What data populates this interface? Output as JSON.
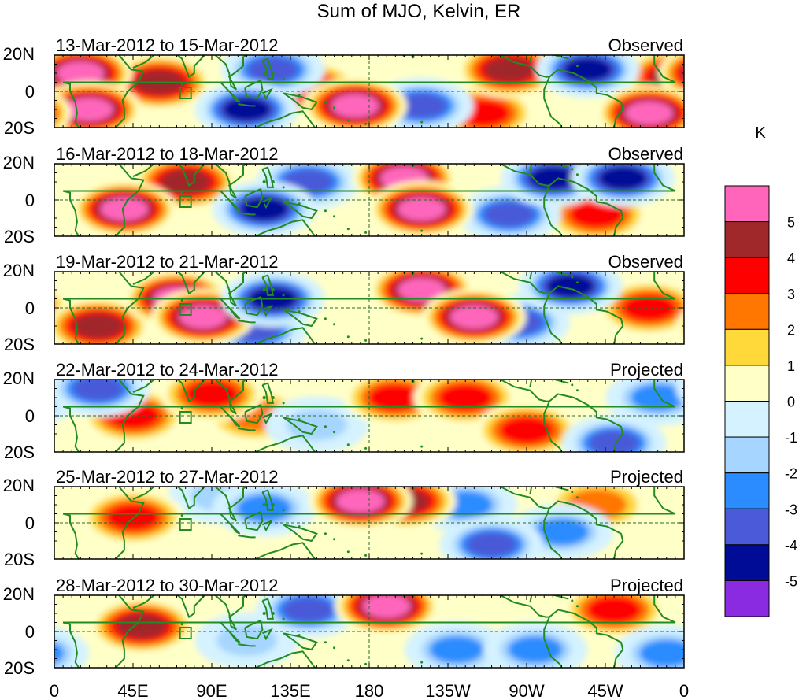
{
  "title": "Sum of MJO, Kelvin, ER",
  "units": "K",
  "lat_labels": [
    "20N",
    "0",
    "20S"
  ],
  "lon_labels": [
    "0",
    "45E",
    "90E",
    "135E",
    "180",
    "135W",
    "90W",
    "45W",
    "0"
  ],
  "panels": [
    {
      "date_range": "13-Mar-2012 to 15-Mar-2012",
      "status": "Observed"
    },
    {
      "date_range": "16-Mar-2012 to 18-Mar-2012",
      "status": "Observed"
    },
    {
      "date_range": "19-Mar-2012 to 21-Mar-2012",
      "status": "Observed"
    },
    {
      "date_range": "22-Mar-2012 to 24-Mar-2012",
      "status": "Projected"
    },
    {
      "date_range": "25-Mar-2012 to 27-Mar-2012",
      "status": "Projected"
    },
    {
      "date_range": "28-Mar-2012 to 30-Mar-2012",
      "status": "Projected"
    }
  ],
  "colorbar": {
    "labels": [
      "5",
      "4",
      "3",
      "2",
      "1",
      "0",
      "-1",
      "-2",
      "-3",
      "-4",
      "-5"
    ],
    "colors": [
      "#ff66bb",
      "#a0282a",
      "#ff0000",
      "#ff7700",
      "#ffd83a",
      "#ffffc8",
      "#d4f2ff",
      "#a6d5ff",
      "#2a8cff",
      "#4a5ad8",
      "#000c96",
      "#8a2be2"
    ]
  },
  "colors": {
    "coast": "#228b22",
    "frame": "#000000"
  },
  "chart_data": [
    {
      "type": "heatmap",
      "title": "Sum of MJO, Kelvin, ER",
      "units": "K",
      "panels": [
        {
          "label": "13-Mar-2012 to 15-Mar-2012",
          "kind": "Observed",
          "anomalies": [
            {
              "lon": 15,
              "lat": 10,
              "value": 5
            },
            {
              "lon": 20,
              "lat": -10,
              "value": 5
            },
            {
              "lon": 60,
              "lat": 5,
              "value": 4
            },
            {
              "lon": 110,
              "lat": -10,
              "value": -5
            },
            {
              "lon": 125,
              "lat": 12,
              "value": -4
            },
            {
              "lon": 172,
              "lat": -8,
              "value": 5
            },
            {
              "lon": 145,
              "lat": 2,
              "value": 3
            },
            {
              "lon": -150,
              "lat": -8,
              "value": -4
            },
            {
              "lon": -115,
              "lat": -12,
              "value": 3
            },
            {
              "lon": -100,
              "lat": 12,
              "value": 4
            },
            {
              "lon": -55,
              "lat": 12,
              "value": -5
            },
            {
              "lon": -20,
              "lat": -12,
              "value": 5
            },
            {
              "lon": -5,
              "lat": 8,
              "value": 4
            }
          ]
        },
        {
          "label": "16-Mar-2012 to 18-Mar-2012",
          "kind": "Observed",
          "anomalies": [
            {
              "lon": 40,
              "lat": -5,
              "value": 5
            },
            {
              "lon": 75,
              "lat": 10,
              "value": 4
            },
            {
              "lon": 120,
              "lat": -5,
              "value": -5
            },
            {
              "lon": 145,
              "lat": 10,
              "value": -4
            },
            {
              "lon": -160,
              "lat": 12,
              "value": 5
            },
            {
              "lon": -150,
              "lat": -5,
              "value": 5
            },
            {
              "lon": -100,
              "lat": -8,
              "value": -4
            },
            {
              "lon": -75,
              "lat": 12,
              "value": -5
            },
            {
              "lon": -35,
              "lat": 12,
              "value": -5
            },
            {
              "lon": -50,
              "lat": -8,
              "value": 3
            }
          ]
        },
        {
          "label": "19-Mar-2012 to 21-Mar-2012",
          "kind": "Observed",
          "anomalies": [
            {
              "lon": 70,
              "lat": 5,
              "value": 5
            },
            {
              "lon": 85,
              "lat": -5,
              "value": 5
            },
            {
              "lon": 25,
              "lat": -10,
              "value": 4
            },
            {
              "lon": 125,
              "lat": 5,
              "value": -5
            },
            {
              "lon": 115,
              "lat": -12,
              "value": -4
            },
            {
              "lon": -150,
              "lat": 10,
              "value": 5
            },
            {
              "lon": -120,
              "lat": -5,
              "value": 5
            },
            {
              "lon": -95,
              "lat": -8,
              "value": -4
            },
            {
              "lon": -65,
              "lat": 12,
              "value": -5
            },
            {
              "lon": -20,
              "lat": 0,
              "value": 3
            }
          ]
        },
        {
          "label": "22-Mar-2012 to 24-Mar-2012",
          "kind": "Projected",
          "anomalies": [
            {
              "lon": 25,
              "lat": 15,
              "value": -4
            },
            {
              "lon": 45,
              "lat": 0,
              "value": 3
            },
            {
              "lon": 90,
              "lat": 12,
              "value": 3
            },
            {
              "lon": 115,
              "lat": 0,
              "value": 2
            },
            {
              "lon": 150,
              "lat": -5,
              "value": -2
            },
            {
              "lon": -165,
              "lat": 10,
              "value": 3
            },
            {
              "lon": -125,
              "lat": 10,
              "value": 3
            },
            {
              "lon": -90,
              "lat": -8,
              "value": 3
            },
            {
              "lon": -40,
              "lat": -15,
              "value": -4
            },
            {
              "lon": -15,
              "lat": 10,
              "value": -3
            }
          ]
        },
        {
          "label": "25-Mar-2012 to 27-Mar-2012",
          "kind": "Projected",
          "anomalies": [
            {
              "lon": 45,
              "lat": 3,
              "value": 3
            },
            {
              "lon": 95,
              "lat": 15,
              "value": -2
            },
            {
              "lon": 120,
              "lat": 8,
              "value": -3
            },
            {
              "lon": 175,
              "lat": 12,
              "value": 5
            },
            {
              "lon": -160,
              "lat": 12,
              "value": 4
            },
            {
              "lon": -125,
              "lat": 10,
              "value": -3
            },
            {
              "lon": -110,
              "lat": -12,
              "value": -4
            },
            {
              "lon": -70,
              "lat": -5,
              "value": -3
            },
            {
              "lon": -50,
              "lat": 10,
              "value": 2
            }
          ]
        },
        {
          "label": "28-Mar-2012 to 30-Mar-2012",
          "kind": "Projected",
          "anomalies": [
            {
              "lon": 50,
              "lat": 3,
              "value": 4
            },
            {
              "lon": 110,
              "lat": -5,
              "value": -2
            },
            {
              "lon": 145,
              "lat": 12,
              "value": -4
            },
            {
              "lon": -170,
              "lat": 14,
              "value": 5
            },
            {
              "lon": -130,
              "lat": -10,
              "value": -3
            },
            {
              "lon": -85,
              "lat": -10,
              "value": -3
            },
            {
              "lon": -40,
              "lat": 12,
              "value": 3
            },
            {
              "lon": -10,
              "lat": -12,
              "value": -3
            }
          ]
        }
      ]
    }
  ]
}
